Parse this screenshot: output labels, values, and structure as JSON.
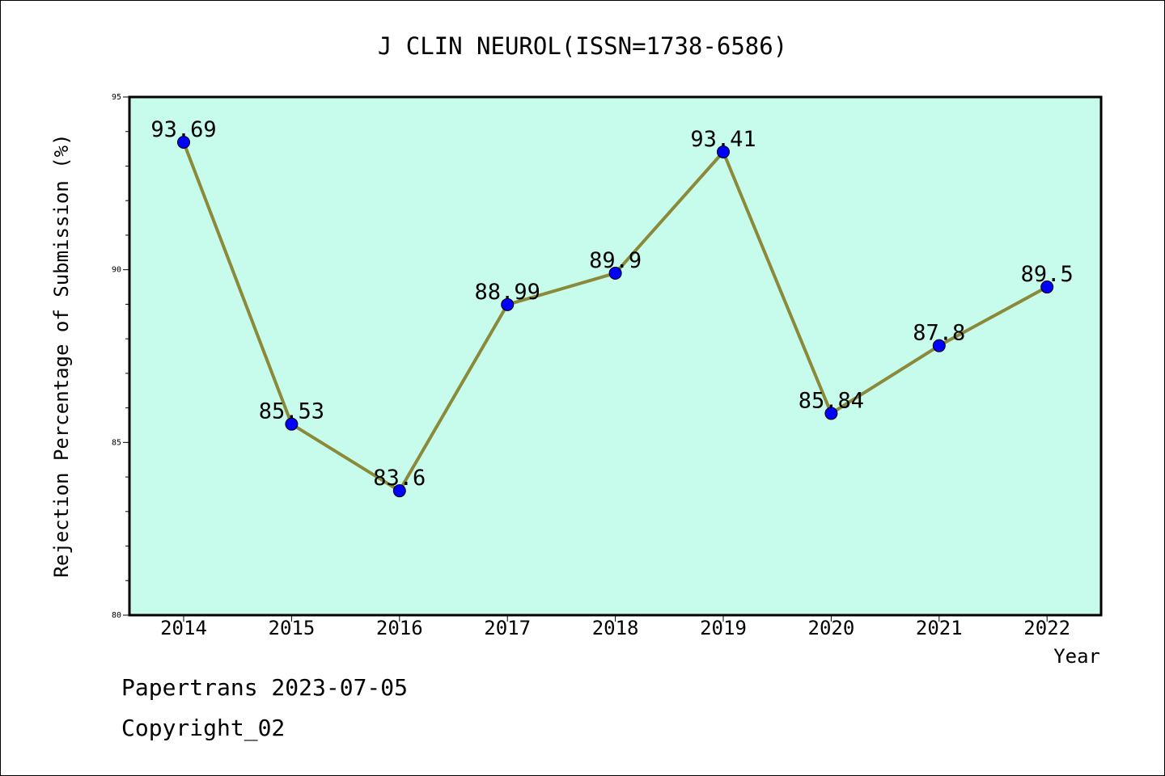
{
  "chart_data": {
    "type": "line",
    "title": "J CLIN NEUROL(ISSN=1738-6586)",
    "xlabel": "Year",
    "ylabel": "Rejection Percentage of Submission (%)",
    "categories": [
      "2014",
      "2015",
      "2016",
      "2017",
      "2018",
      "2019",
      "2020",
      "2021",
      "2022"
    ],
    "values": [
      93.69,
      85.53,
      83.6,
      88.99,
      89.9,
      93.41,
      85.84,
      87.8,
      89.5
    ],
    "data_labels": [
      "93.69",
      "85.53",
      "83.6",
      "88.99",
      "89.9",
      "93.41",
      "85.84",
      "87.8",
      "89.5"
    ],
    "ylim": [
      80,
      95
    ],
    "yticks_major": [
      80,
      85,
      90,
      95
    ],
    "yticks_minor_step": 1,
    "grid": false,
    "legend": "none",
    "colors": {
      "plot_background": "#c7fcec",
      "line": "#8b8a3a",
      "marker": "#0000ff"
    }
  },
  "footer": {
    "line1": "Papertrans 2023-07-05",
    "line2": "Copyright_02"
  }
}
